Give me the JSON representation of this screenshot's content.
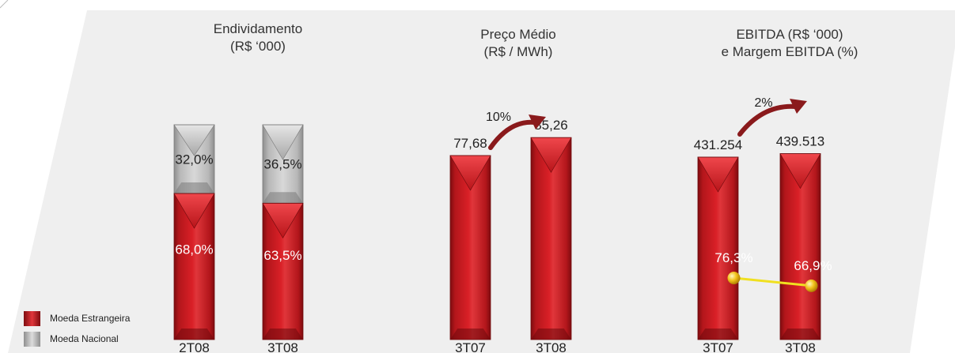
{
  "colors": {
    "red": "#c8141b",
    "grey": "#c2c2c2",
    "margin_line": "#f0e020",
    "arrow": "#8a1a1c"
  },
  "legend": [
    {
      "label": "Moeda Estrangeira",
      "color": "#c8141b"
    },
    {
      "label": "Moeda Nacional",
      "color": "#c2c2c2"
    }
  ],
  "chart_data": [
    {
      "type": "bar",
      "stacked": true,
      "title_lines": [
        "Endividamento",
        "(R$ ‘000)"
      ],
      "categories": [
        "2T08",
        "3T08"
      ],
      "series": [
        {
          "name": "Moeda Estrangeira",
          "values": [
            68.0,
            63.5
          ],
          "labels": [
            "68,0%",
            "63,5%"
          ],
          "color": "#c8141b"
        },
        {
          "name": "Moeda Nacional",
          "values": [
            32.0,
            36.5
          ],
          "labels": [
            "32,0%",
            "36,5%"
          ],
          "color": "#c2c2c2"
        }
      ]
    },
    {
      "type": "bar",
      "title_lines": [
        "Preço Médio",
        "(R$ / MWh)"
      ],
      "categories": [
        "3T07",
        "3T08"
      ],
      "values": [
        77.68,
        85.26
      ],
      "labels": [
        "77,68",
        "85,26"
      ],
      "growth_label": "10%"
    },
    {
      "type": "bar",
      "title_lines": [
        "EBITDA (R$ ‘000)",
        "e Margem EBITDA (%)"
      ],
      "categories": [
        "3T07",
        "3T08"
      ],
      "values": [
        431254,
        439513
      ],
      "labels": [
        "431.254",
        "439.513"
      ],
      "growth_label": "2%",
      "line_series": {
        "values": [
          76.3,
          66.9
        ],
        "labels": [
          "76,3%",
          "66,9%"
        ]
      }
    }
  ]
}
